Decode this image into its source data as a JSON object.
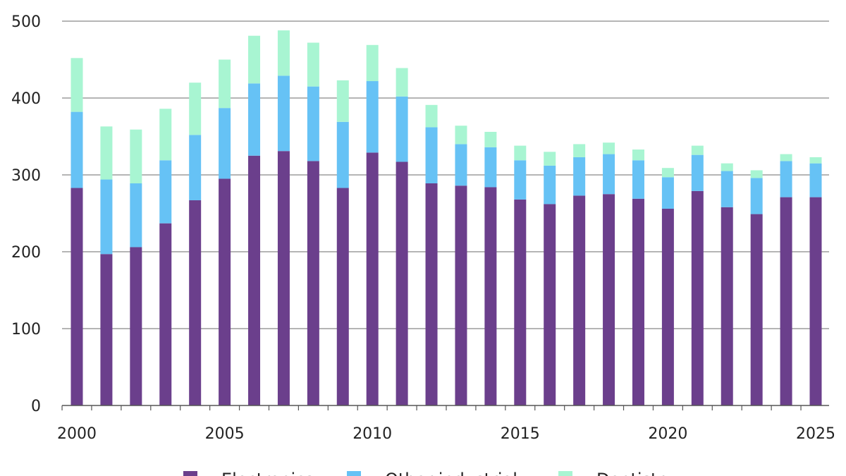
{
  "chart_data": {
    "type": "bar",
    "stacked": true,
    "x": [
      2000,
      2001,
      2002,
      2003,
      2004,
      2005,
      2006,
      2007,
      2008,
      2009,
      2010,
      2011,
      2012,
      2013,
      2014,
      2015,
      2016,
      2017,
      2018,
      2019,
      2020,
      2021,
      2022,
      2023,
      2024,
      2025
    ],
    "x_tick_labels": [
      "2000",
      "2005",
      "2010",
      "2015",
      "2020",
      "2025"
    ],
    "series": [
      {
        "name": "Electronics",
        "color": "#6b3f8c",
        "values": [
          283,
          197,
          206,
          237,
          267,
          295,
          325,
          331,
          318,
          283,
          329,
          317,
          289,
          286,
          284,
          268,
          262,
          273,
          275,
          269,
          256,
          279,
          258,
          249,
          271,
          271
        ]
      },
      {
        "name": "Other industrial",
        "color": "#66c2f5",
        "values": [
          99,
          97,
          83,
          82,
          85,
          92,
          94,
          98,
          97,
          86,
          93,
          85,
          73,
          54,
          52,
          51,
          50,
          50,
          52,
          50,
          41,
          47,
          47,
          47,
          47,
          44
        ]
      },
      {
        "name": "Dentistry",
        "color": "#a8f5d2",
        "values": [
          70,
          69,
          70,
          67,
          68,
          63,
          62,
          59,
          57,
          54,
          47,
          37,
          29,
          24,
          20,
          19,
          18,
          17,
          15,
          14,
          12,
          12,
          10,
          10,
          9,
          8
        ]
      }
    ],
    "y_ticks": [
      0,
      100,
      200,
      300,
      400,
      500
    ],
    "ylim": [
      0,
      500
    ],
    "grid": true,
    "legend": "bottom"
  }
}
